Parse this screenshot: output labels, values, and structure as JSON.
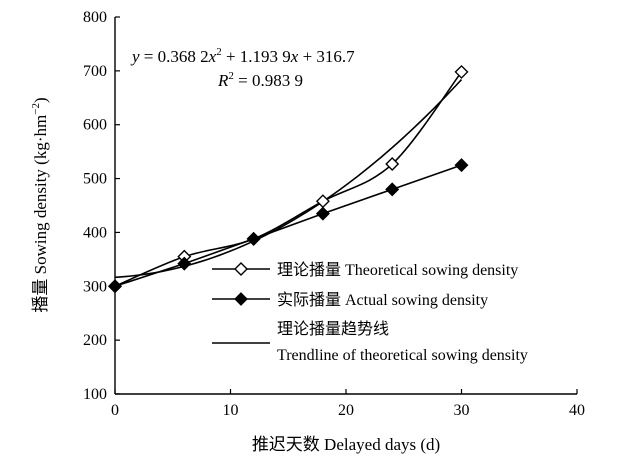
{
  "chart_data": {
    "type": "line",
    "xlabel": "推迟天数 Delayed days (d)",
    "ylabel_main": "播量 Sowing density (kg·hm",
    "ylabel_sup": "−2",
    "ylabel_close": ")",
    "xlim": [
      0,
      40
    ],
    "ylim": [
      100,
      800
    ],
    "x_ticks": [
      0,
      10,
      20,
      30,
      40
    ],
    "y_ticks": [
      100,
      200,
      300,
      400,
      500,
      600,
      700,
      800
    ],
    "grid": false,
    "legend_position": "right-middle",
    "x": [
      0,
      6,
      12,
      18,
      24,
      30
    ],
    "series": [
      {
        "name": "理论播量 Theoretical sowing density",
        "marker": "open-diamond",
        "values": [
          300,
          355,
          388,
          458,
          527,
          698
        ]
      },
      {
        "name": "实际播量 Actual sowing density",
        "marker": "filled-diamond",
        "values": [
          300,
          342,
          388,
          435,
          480,
          525
        ]
      }
    ],
    "trendline": {
      "name_line1": "理论播量趋势线",
      "name_line2": "Trendline of theoretical sowing density",
      "coefficients": [
        0.3682,
        1.1939,
        316.7
      ],
      "x_range": [
        0,
        30
      ]
    },
    "equation": {
      "y": "y",
      "eq1": " = 0.368 2",
      "x1": "x",
      "sup1": "2",
      "eq2": " + 1.193 9",
      "x2": "x",
      "eq3": " + 316.7",
      "r": "R",
      "sup2": "2",
      "eq4": " = 0.983 9"
    }
  }
}
